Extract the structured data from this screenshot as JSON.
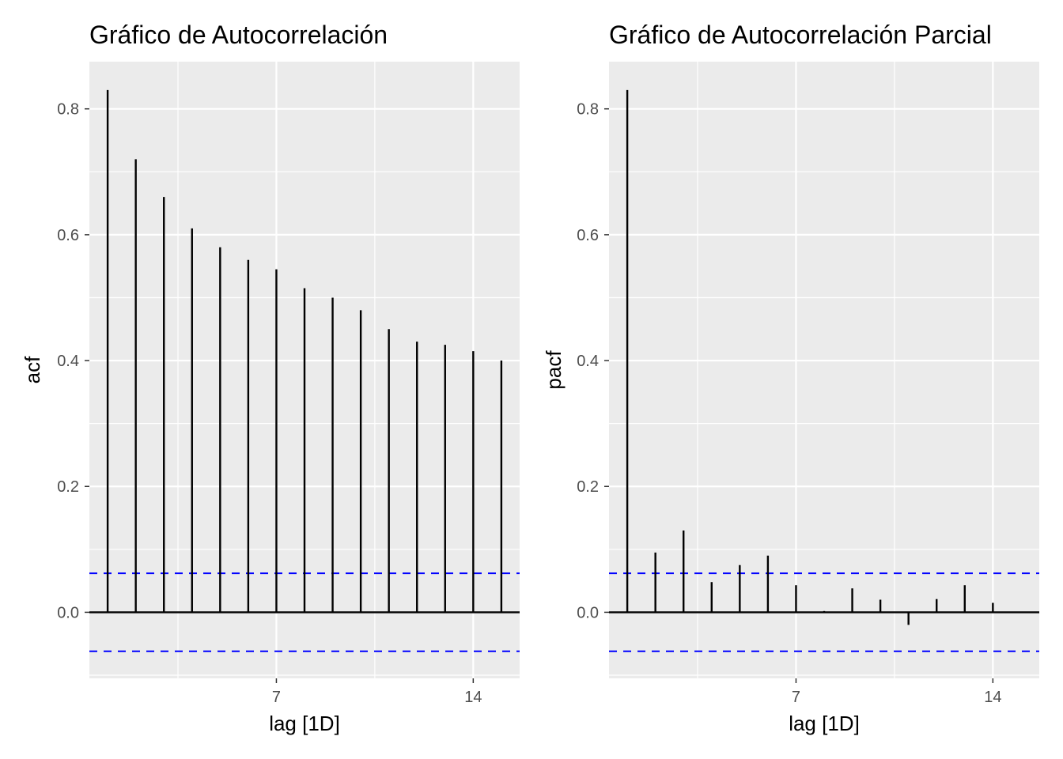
{
  "chart_data": [
    {
      "type": "bar",
      "title": "Gráfico de Autocorrelación",
      "xlabel": "lag [1D]",
      "ylabel": "acf",
      "x": [
        1,
        2,
        3,
        4,
        5,
        6,
        7,
        8,
        9,
        10,
        11,
        12,
        13,
        14,
        15
      ],
      "values": [
        0.83,
        0.72,
        0.66,
        0.61,
        0.58,
        0.56,
        0.545,
        0.515,
        0.5,
        0.48,
        0.45,
        0.43,
        0.425,
        0.415,
        0.4
      ],
      "xlim": [
        0.35,
        15.65
      ],
      "ylim": [
        -0.105,
        0.875
      ],
      "x_ticks": [
        7,
        14
      ],
      "x_tick_labels": [
        "7",
        "14"
      ],
      "y_ticks": [
        0,
        0.2,
        0.4,
        0.6,
        0.8
      ],
      "y_tick_labels": [
        "0.0",
        "0.2",
        "0.4",
        "0.6",
        "0.8"
      ],
      "confidence_bounds": [
        0.062,
        -0.062
      ],
      "grid": true,
      "bar_color": "#000000",
      "bound_color": "#0000ff",
      "panel_background": "#ebebeb",
      "grid_color": "#ffffff"
    },
    {
      "type": "bar",
      "title": "Gráfico de Autocorrelación Parcial",
      "xlabel": "lag [1D]",
      "ylabel": "pacf",
      "x": [
        1,
        2,
        3,
        4,
        5,
        6,
        7,
        8,
        9,
        10,
        11,
        12,
        13,
        14,
        15
      ],
      "values": [
        0.83,
        0.095,
        0.13,
        0.048,
        0.075,
        0.09,
        0.043,
        0.002,
        0.038,
        0.02,
        -0.02,
        0.021,
        0.043,
        0.015,
        0.0
      ],
      "xlim": [
        0.35,
        15.65
      ],
      "ylim": [
        -0.105,
        0.875
      ],
      "x_ticks": [
        7,
        14
      ],
      "x_tick_labels": [
        "7",
        "14"
      ],
      "y_ticks": [
        0,
        0.2,
        0.4,
        0.6,
        0.8
      ],
      "y_tick_labels": [
        "0.0",
        "0.2",
        "0.4",
        "0.6",
        "0.8"
      ],
      "confidence_bounds": [
        0.062,
        -0.062
      ],
      "grid": true,
      "bar_color": "#000000",
      "bound_color": "#0000ff",
      "panel_background": "#ebebeb",
      "grid_color": "#ffffff"
    }
  ]
}
